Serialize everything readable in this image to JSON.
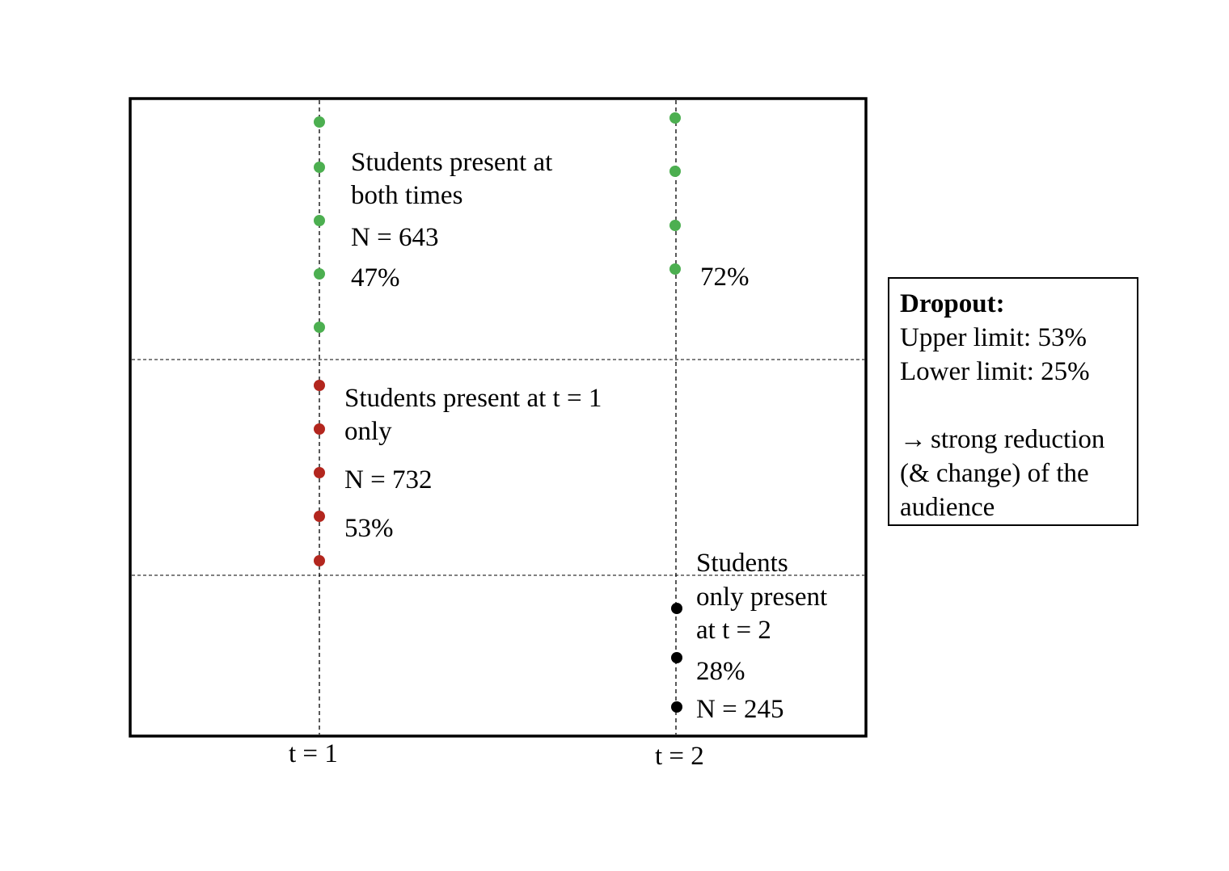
{
  "colors": {
    "present_both": "#4caf50",
    "present_t1_only": "#b3261e",
    "present_t2_only": "#000000",
    "frame": "#000000"
  },
  "axis": {
    "t1_label": "t = 1",
    "t2_label": "t = 2"
  },
  "groups": {
    "both": {
      "label_line1": "Students present at",
      "label_line2": "both times",
      "n": "N = 643",
      "pct_t1": "47%",
      "pct_t2": "72%",
      "dots_t1": 5,
      "dots_t2": 4
    },
    "t1_only": {
      "label_line1": "Students present at t = 1",
      "label_line2": "only",
      "n": "N = 732",
      "pct": "53%",
      "dots": 5
    },
    "t2_only": {
      "label_line1": "Students",
      "label_line2": "only present",
      "label_line3": "at t = 2",
      "pct": "28%",
      "n": "N = 245",
      "dots": 3
    }
  },
  "dropout_box": {
    "title": "Dropout:",
    "upper": "Upper limit: 53%",
    "lower": "Lower limit: 25%",
    "arrow_icon": "right-arrow-icon",
    "arrow_glyph": "→",
    "conclusion_line1": "strong reduction",
    "conclusion_line2": "(& change) of the",
    "conclusion_line3": "audience"
  }
}
